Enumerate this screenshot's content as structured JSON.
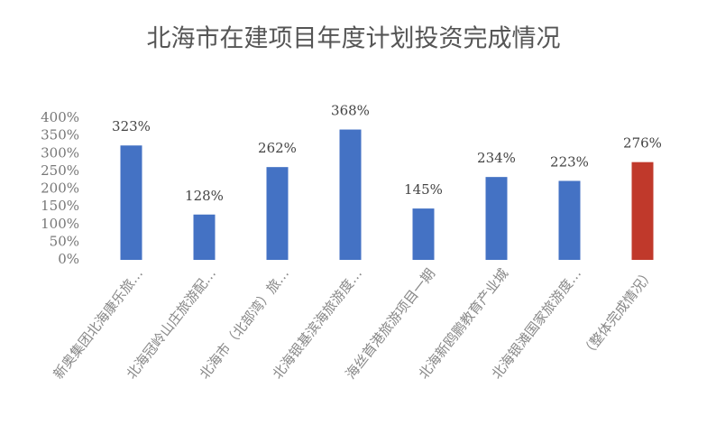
{
  "chart_data": {
    "type": "bar",
    "title": "北海市在建项目年度计划投资完成情况",
    "categories": [
      "新奥集团北海康乐旅…",
      "北海冠岭山庄旅游配…",
      "北海市（北部湾）旅…",
      "北海银基滨海旅游度…",
      "海丝首港旅游项目一期",
      "北海新鸥鹏教育产业城",
      "北海银滩国家旅游度…",
      "（整体完成情况）"
    ],
    "values": [
      323,
      128,
      262,
      368,
      145,
      234,
      223,
      276
    ],
    "value_labels": [
      "323%",
      "128%",
      "262%",
      "368%",
      "145%",
      "234%",
      "223%",
      "276%"
    ],
    "colors": [
      "#4472c4",
      "#4472c4",
      "#4472c4",
      "#4472c4",
      "#4472c4",
      "#4472c4",
      "#4472c4",
      "#c0392b"
    ],
    "ylim": [
      0,
      400
    ],
    "yticks": [
      {
        "value": 0,
        "label": "0%"
      },
      {
        "value": 50,
        "label": "50%"
      },
      {
        "value": 100,
        "label": "100%"
      },
      {
        "value": 150,
        "label": "150%"
      },
      {
        "value": 200,
        "label": "200%"
      },
      {
        "value": 250,
        "label": "250%"
      },
      {
        "value": 300,
        "label": "300%"
      },
      {
        "value": 350,
        "label": "350%"
      },
      {
        "value": 400,
        "label": "400%"
      }
    ],
    "grid": false
  }
}
